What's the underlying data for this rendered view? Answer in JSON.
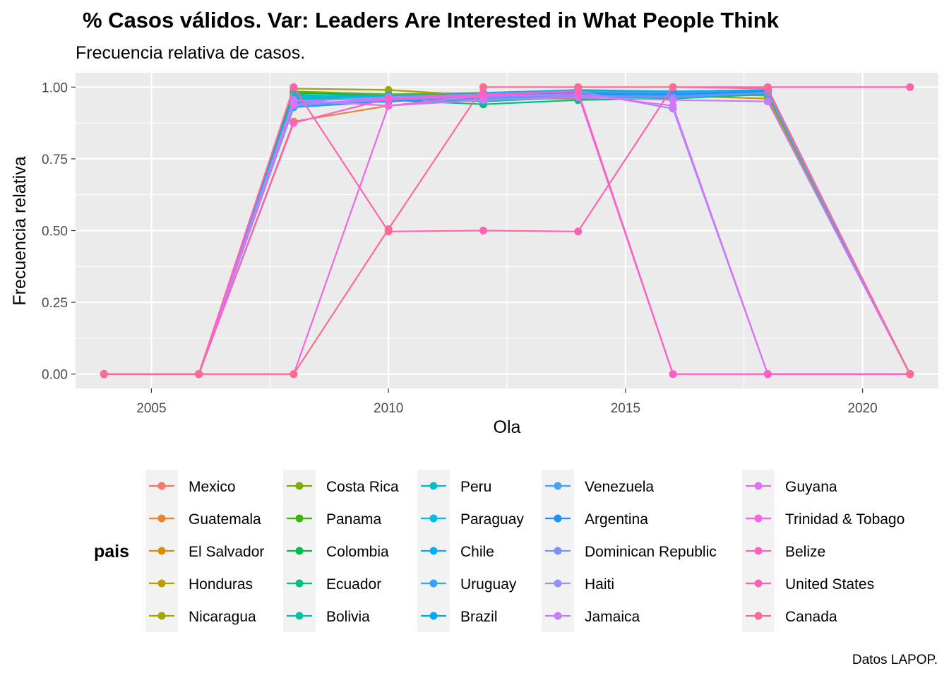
{
  "chart_data": {
    "type": "line",
    "title": "% Casos válidos. Var: Leaders Are Interested in What People Think",
    "subtitle": "Frecuencia relativa de casos.",
    "xlabel": "Ola",
    "ylabel": "Frecuencia relativa",
    "caption": "Datos LAPOP.",
    "legend_title": "pais",
    "legend_position": "bottom",
    "grid": true,
    "xlim": [
      2003.4,
      2021.6
    ],
    "ylim": [
      -0.05,
      1.05
    ],
    "x_ticks": [
      "2005",
      "2010",
      "2015",
      "2020"
    ],
    "y_ticks": [
      "0.00",
      "0.25",
      "0.50",
      "0.75",
      "1.00"
    ],
    "x": [
      2004,
      2006,
      2008,
      2010,
      2012,
      2014,
      2016,
      2018,
      2021
    ],
    "series": [
      {
        "name": "Mexico",
        "color": "#F8766D",
        "values": [
          0,
          0,
          0.96,
          0.96,
          0.96,
          0.97,
          0.97,
          0.98,
          0
        ]
      },
      {
        "name": "Guatemala",
        "color": "#EA8331",
        "values": [
          0,
          0,
          0.88,
          0.935,
          0.96,
          0.965,
          0.965,
          0.975,
          0
        ]
      },
      {
        "name": "El Salvador",
        "color": "#D89000",
        "values": [
          0,
          0,
          0.965,
          0.97,
          0.97,
          0.97,
          0.975,
          0.98,
          0
        ]
      },
      {
        "name": "Honduras",
        "color": "#C09B00",
        "values": [
          0,
          0,
          0.975,
          0.96,
          0.96,
          0.96,
          0.97,
          0.96,
          0
        ]
      },
      {
        "name": "Nicaragua",
        "color": "#A3A500",
        "values": [
          0,
          0,
          0.995,
          0.99,
          0.97,
          0.98,
          0.98,
          0.97,
          0
        ]
      },
      {
        "name": "Costa Rica",
        "color": "#7CAE00",
        "values": [
          0,
          0,
          0.985,
          0.975,
          0.98,
          0.985,
          0.985,
          0.99,
          0
        ]
      },
      {
        "name": "Panama",
        "color": "#39B600",
        "values": [
          0,
          0,
          0.97,
          0.96,
          0.97,
          0.975,
          0.975,
          0.985,
          0
        ]
      },
      {
        "name": "Colombia",
        "color": "#00BB4E",
        "values": [
          0,
          0,
          0.98,
          0.97,
          0.975,
          0.98,
          0.98,
          0.985,
          0
        ]
      },
      {
        "name": "Ecuador",
        "color": "#00BF7D",
        "values": [
          0,
          0,
          0.975,
          0.955,
          0.94,
          0.955,
          0.96,
          0.975,
          0
        ]
      },
      {
        "name": "Bolivia",
        "color": "#00C1A3",
        "values": [
          0,
          0,
          0.96,
          0.96,
          0.95,
          0.965,
          0.96,
          0.98,
          0
        ]
      },
      {
        "name": "Peru",
        "color": "#00BFC4",
        "values": [
          0,
          0,
          0.965,
          0.965,
          0.97,
          0.97,
          0.975,
          0.985,
          0
        ]
      },
      {
        "name": "Paraguay",
        "color": "#00BAE0",
        "values": [
          0,
          0,
          0.97,
          0.97,
          0.975,
          0.975,
          0.98,
          0.985,
          0
        ]
      },
      {
        "name": "Chile",
        "color": "#00B0F6",
        "values": [
          0,
          0,
          0.95,
          0.965,
          0.98,
          0.99,
          0.985,
          0.99,
          0
        ]
      },
      {
        "name": "Uruguay",
        "color": "#35A2FF",
        "values": [
          0,
          0,
          0.955,
          0.96,
          0.975,
          0.98,
          0.98,
          0.985,
          0
        ]
      },
      {
        "name": "Brazil",
        "color": "#00A9FF",
        "values": [
          0,
          0,
          0.93,
          0.95,
          0.97,
          0.98,
          0.97,
          0.99,
          0
        ]
      },
      {
        "name": "Venezuela",
        "color": "#4A9FFF",
        "values": [
          0,
          0,
          0.94,
          0.955,
          0.96,
          0.97,
          0.97,
          0.98,
          0
        ]
      },
      {
        "name": "Argentina",
        "color": "#1E90FF",
        "values": [
          0,
          0,
          0.945,
          0.95,
          0.965,
          0.975,
          0.975,
          0.985,
          0
        ]
      },
      {
        "name": "Dominican Republic",
        "color": "#7B8FFF",
        "values": [
          0,
          0,
          0.935,
          0.955,
          0.965,
          0.97,
          0.965,
          0.98,
          0
        ]
      },
      {
        "name": "Haiti",
        "color": "#9590FF",
        "values": [
          0,
          0,
          0.95,
          0.965,
          0.975,
          0.985,
          0.925,
          0,
          0
        ]
      },
      {
        "name": "Jamaica",
        "color": "#C77CFF",
        "values": [
          0,
          0,
          0.955,
          0.935,
          0.955,
          0.965,
          0.955,
          0.95,
          0
        ]
      },
      {
        "name": "Guyana",
        "color": "#DC71FA",
        "values": [
          0,
          0,
          0.94,
          0.96,
          0.97,
          0.975,
          0.935,
          0,
          0
        ]
      },
      {
        "name": "Trinidad & Tobago",
        "color": "#F564E3",
        "values": [
          0,
          0,
          0,
          0.935,
          0.97,
          0.975,
          0,
          0,
          0
        ]
      },
      {
        "name": "Belize",
        "color": "#FF61C3",
        "values": [
          0,
          0,
          0.875,
          0.96,
          0.975,
          0.985,
          0,
          0,
          0
        ]
      },
      {
        "name": "United States",
        "color": "#FF64B0",
        "values": [
          0,
          0,
          1.0,
          0.497,
          0.5,
          0.497,
          1.0,
          1.0,
          1.0
        ]
      },
      {
        "name": "Canada",
        "color": "#FF6C91",
        "values": [
          0,
          0,
          0,
          0.505,
          1.0,
          1.0,
          1.0,
          0.995,
          0
        ]
      }
    ]
  }
}
